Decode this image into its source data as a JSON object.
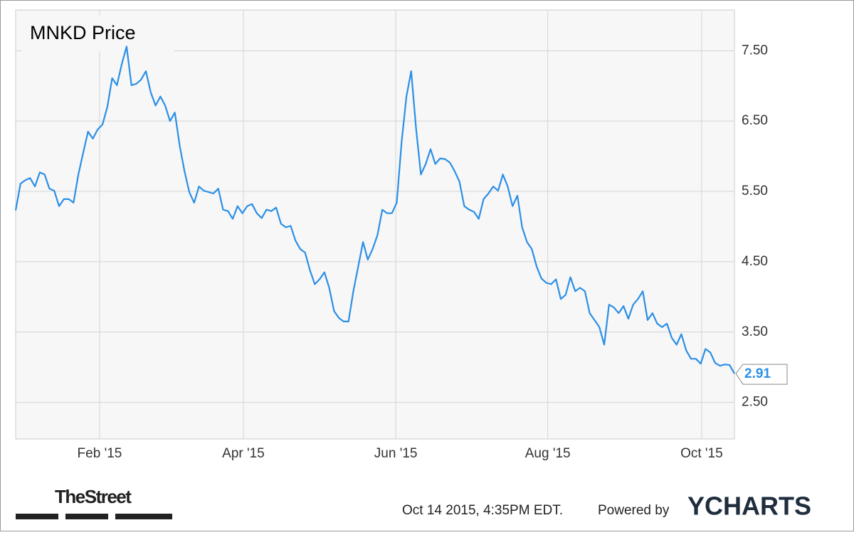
{
  "chart_data": {
    "type": "line",
    "title": "MNKD Price",
    "series": [
      {
        "name": "MNKD",
        "color": "#2b8fe6",
        "values": [
          5.23,
          5.61,
          5.66,
          5.69,
          5.57,
          5.77,
          5.74,
          5.54,
          5.51,
          5.29,
          5.39,
          5.39,
          5.34,
          5.74,
          6.05,
          6.35,
          6.25,
          6.38,
          6.45,
          6.7,
          7.11,
          7.01,
          7.31,
          7.56,
          7.01,
          7.03,
          7.09,
          7.21,
          6.91,
          6.72,
          6.85,
          6.72,
          6.5,
          6.62,
          6.15,
          5.79,
          5.49,
          5.34,
          5.57,
          5.51,
          5.49,
          5.47,
          5.54,
          5.24,
          5.22,
          5.11,
          5.29,
          5.19,
          5.29,
          5.32,
          5.19,
          5.12,
          5.24,
          5.22,
          5.27,
          5.04,
          4.99,
          5.01,
          4.8,
          4.68,
          4.63,
          4.38,
          4.18,
          4.25,
          4.35,
          4.13,
          3.8,
          3.7,
          3.65,
          3.65,
          4.08,
          4.43,
          4.78,
          4.53,
          4.68,
          4.88,
          5.24,
          5.19,
          5.19,
          5.34,
          6.2,
          6.85,
          7.21,
          6.4,
          5.74,
          5.89,
          6.1,
          5.89,
          5.97,
          5.96,
          5.91,
          5.79,
          5.64,
          5.29,
          5.24,
          5.21,
          5.11,
          5.39,
          5.47,
          5.57,
          5.51,
          5.74,
          5.57,
          5.29,
          5.44,
          4.99,
          4.78,
          4.68,
          4.43,
          4.26,
          4.2,
          4.18,
          4.25,
          3.97,
          4.03,
          4.28,
          4.08,
          4.13,
          4.08,
          3.77,
          3.67,
          3.57,
          3.32,
          3.89,
          3.85,
          3.77,
          3.87,
          3.69,
          3.89,
          3.97,
          4.08,
          3.67,
          3.77,
          3.62,
          3.57,
          3.62,
          3.42,
          3.32,
          3.47,
          3.24,
          3.12,
          3.12,
          3.05,
          3.26,
          3.21,
          3.06,
          3.02,
          3.04,
          3.03,
          2.91
        ]
      }
    ],
    "xlim": [
      0,
      149
    ],
    "xticks": [
      {
        "value": 17.4,
        "label": "Feb '15"
      },
      {
        "value": 47.2,
        "label": "Apr '15"
      },
      {
        "value": 78.8,
        "label": "Jun '15"
      },
      {
        "value": 110.3,
        "label": "Aug '15"
      },
      {
        "value": 142.2,
        "label": "Oct '15"
      }
    ],
    "ylim": [
      1.98,
      8.08
    ],
    "yticks": [
      {
        "value": 2.5,
        "label": "2.50"
      },
      {
        "value": 3.5,
        "label": "3.50"
      },
      {
        "value": 4.5,
        "label": "4.50"
      },
      {
        "value": 5.5,
        "label": "5.50"
      },
      {
        "value": 6.5,
        "label": "6.50"
      },
      {
        "value": 7.5,
        "label": "7.50"
      }
    ],
    "grid": true
  },
  "footer": {
    "source_logo": "TheStreet",
    "timestamp": "Oct 14 2015, 4:35PM EDT.",
    "powered_by": "Powered by",
    "brand": "YCHARTS"
  }
}
